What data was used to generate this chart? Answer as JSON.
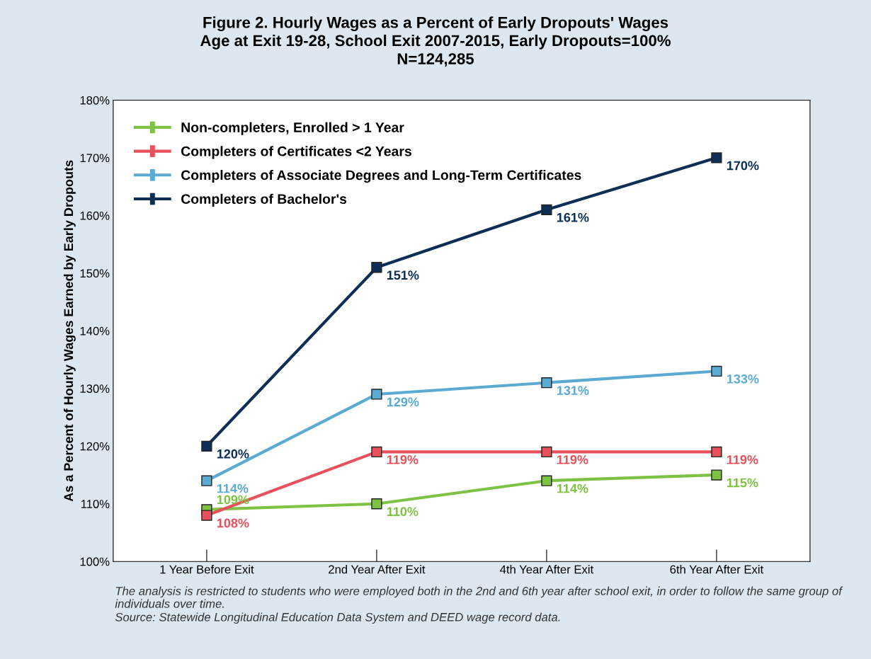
{
  "chart_data": {
    "type": "line",
    "title": "Figure 2. Hourly Wages as a Percent of Early Dropouts' Wages\nAge at Exit 19-28, School Exit 2007-2015, Early Dropouts=100%\nN=124,285",
    "ylabel": "As a Percent of Hourly Wages Earned by Early Dropouts",
    "categories": [
      "1 Year Before Exit",
      "2nd Year After Exit",
      "4th Year After Exit",
      "6th Year After Exit"
    ],
    "series": [
      {
        "name": "Non-completers, Enrolled > 1 Year",
        "color": "#7dc242",
        "values": [
          109,
          110,
          114,
          115
        ]
      },
      {
        "name": "Completers of Certificates <2 Years",
        "color": "#e8505b",
        "values": [
          108,
          119,
          119,
          119
        ]
      },
      {
        "name": "Completers of Associate Degrees and Long-Term Certificates",
        "color": "#5aaad2",
        "values": [
          114,
          129,
          131,
          133
        ]
      },
      {
        "name": "Completers of Bachelor's",
        "color": "#0d2f55",
        "values": [
          120,
          151,
          161,
          170
        ]
      }
    ],
    "ylim": [
      100,
      180
    ],
    "yticks": [
      {
        "value": 100,
        "label": "100%"
      },
      {
        "value": 110,
        "label": "110%"
      },
      {
        "value": 120,
        "label": "120%"
      },
      {
        "value": 130,
        "label": "130%"
      },
      {
        "value": 140,
        "label": "140%"
      },
      {
        "value": 150,
        "label": "150%"
      },
      {
        "value": 160,
        "label": "160%"
      },
      {
        "value": 170,
        "label": "170%"
      },
      {
        "value": 180,
        "label": "180%"
      }
    ],
    "value_labels": [
      [
        "109%",
        "110%",
        "114%",
        "115%"
      ],
      [
        "108%",
        "119%",
        "119%",
        "119%"
      ],
      [
        "114%",
        "129%",
        "131%",
        "133%"
      ],
      [
        "120%",
        "151%",
        "161%",
        "170%"
      ]
    ],
    "marker": "square",
    "line_style": "solid",
    "grid": false,
    "legend": "top left",
    "annotations": [
      "The analysis is restricted to students who were employed both in the 2nd and 6th year after school exit, in order to follow the same group of individuals over time.",
      "Source: Statewide Longitudinal Education Data System and DEED wage record data."
    ]
  }
}
